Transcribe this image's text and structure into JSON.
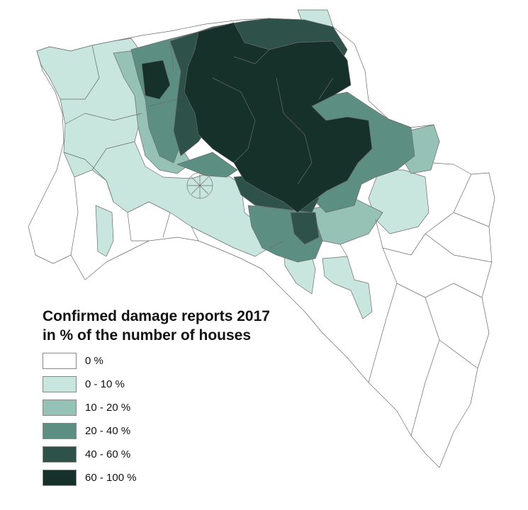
{
  "legend": {
    "title_line1": "Confirmed damage reports 2017",
    "title_line2": "in % of the number of houses",
    "classes": [
      {
        "label": "0 %",
        "color": "#ffffff"
      },
      {
        "label": "0 - 10 %",
        "color": "#c8e6dd"
      },
      {
        "label": "10 - 20 %",
        "color": "#95c2b5"
      },
      {
        "label": "20 - 40 %",
        "color": "#5c8f82"
      },
      {
        "label": "40 - 60 %",
        "color": "#2e5249"
      },
      {
        "label": "60 - 100 %",
        "color": "#16302a"
      }
    ]
  }
}
